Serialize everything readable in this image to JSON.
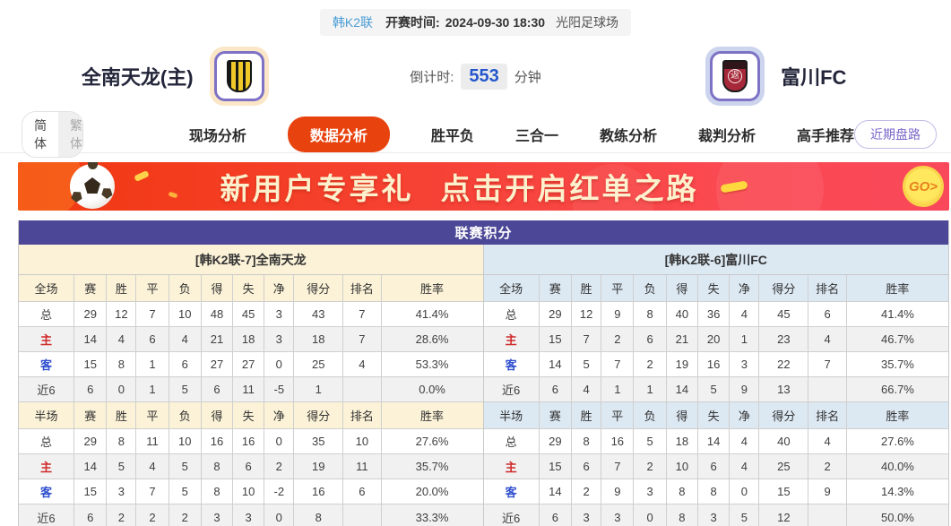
{
  "header": {
    "league_badge": "韩K2联",
    "kickoff_label": "开赛时间:",
    "kickoff_time": "2024-09-30 18:30",
    "venue": "光阳足球场",
    "home_name": "全南天龙(主)",
    "away_name": "富川FC",
    "away_glyph": "返",
    "countdown_label": "倒计时:",
    "countdown_value": "553",
    "countdown_unit": "分钟"
  },
  "nav": {
    "lang_simplified": "简体",
    "lang_traditional": "繁体",
    "tabs": [
      {
        "label": "现场分析",
        "active": false
      },
      {
        "label": "数据分析",
        "active": true
      },
      {
        "label": "胜平负",
        "active": false
      },
      {
        "label": "三合一",
        "active": false
      },
      {
        "label": "教练分析",
        "active": false
      },
      {
        "label": "裁判分析",
        "active": false
      },
      {
        "label": "高手推荐",
        "active": false
      }
    ],
    "recent_button": "近期盘路"
  },
  "banner": {
    "title1": "新用户专享礼",
    "title2": "点击开启红单之路",
    "go_label": "GO>"
  },
  "colors": {
    "accent_red": "#e8430f",
    "title_indigo": "#4c4796",
    "home_header_bg": "#fbf2d7",
    "away_header_bg": "#dce8f2",
    "countdown_blue": "#2457cd",
    "badge_blue": "#4a9dd6",
    "home_row_label": "#cf2b2b",
    "away_row_label": "#2f4fcf"
  },
  "league_table": {
    "title": "联赛积分",
    "columns": [
      "赛",
      "胜",
      "平",
      "负",
      "得",
      "失",
      "净",
      "得分",
      "排名",
      "胜率"
    ],
    "left": {
      "subtitle": "[韩K2联-7]全南天龙",
      "sections": [
        {
          "label": "全场",
          "rows": [
            {
              "label": "总",
              "values": [
                "29",
                "12",
                "7",
                "10",
                "48",
                "45",
                "3",
                "43",
                "7",
                "41.4%"
              ]
            },
            {
              "label": "主",
              "values": [
                "14",
                "4",
                "6",
                "4",
                "21",
                "18",
                "3",
                "18",
                "7",
                "28.6%"
              ]
            },
            {
              "label": "客",
              "values": [
                "15",
                "8",
                "1",
                "6",
                "27",
                "27",
                "0",
                "25",
                "4",
                "53.3%"
              ]
            },
            {
              "label": "近6",
              "values": [
                "6",
                "0",
                "1",
                "5",
                "6",
                "11",
                "-5",
                "1",
                "",
                "0.0%"
              ]
            }
          ]
        },
        {
          "label": "半场",
          "rows": [
            {
              "label": "总",
              "values": [
                "29",
                "8",
                "11",
                "10",
                "16",
                "16",
                "0",
                "35",
                "10",
                "27.6%"
              ]
            },
            {
              "label": "主",
              "values": [
                "14",
                "5",
                "4",
                "5",
                "8",
                "6",
                "2",
                "19",
                "11",
                "35.7%"
              ]
            },
            {
              "label": "客",
              "values": [
                "15",
                "3",
                "7",
                "5",
                "8",
                "10",
                "-2",
                "16",
                "6",
                "20.0%"
              ]
            },
            {
              "label": "近6",
              "values": [
                "6",
                "2",
                "2",
                "2",
                "3",
                "3",
                "0",
                "8",
                "",
                "33.3%"
              ]
            }
          ]
        }
      ]
    },
    "right": {
      "subtitle": "[韩K2联-6]富川FC",
      "sections": [
        {
          "label": "全场",
          "rows": [
            {
              "label": "总",
              "values": [
                "29",
                "12",
                "9",
                "8",
                "40",
                "36",
                "4",
                "45",
                "6",
                "41.4%"
              ]
            },
            {
              "label": "主",
              "values": [
                "15",
                "7",
                "2",
                "6",
                "21",
                "20",
                "1",
                "23",
                "4",
                "46.7%"
              ]
            },
            {
              "label": "客",
              "values": [
                "14",
                "5",
                "7",
                "2",
                "19",
                "16",
                "3",
                "22",
                "7",
                "35.7%"
              ]
            },
            {
              "label": "近6",
              "values": [
                "6",
                "4",
                "1",
                "1",
                "14",
                "5",
                "9",
                "13",
                "",
                "66.7%"
              ]
            }
          ]
        },
        {
          "label": "半场",
          "rows": [
            {
              "label": "总",
              "values": [
                "29",
                "8",
                "16",
                "5",
                "18",
                "14",
                "4",
                "40",
                "4",
                "27.6%"
              ]
            },
            {
              "label": "主",
              "values": [
                "15",
                "6",
                "7",
                "2",
                "10",
                "6",
                "4",
                "25",
                "2",
                "40.0%"
              ]
            },
            {
              "label": "客",
              "values": [
                "14",
                "2",
                "9",
                "3",
                "8",
                "8",
                "0",
                "15",
                "9",
                "14.3%"
              ]
            },
            {
              "label": "近6",
              "values": [
                "6",
                "3",
                "3",
                "0",
                "8",
                "3",
                "5",
                "12",
                "",
                "50.0%"
              ]
            }
          ]
        }
      ]
    }
  }
}
